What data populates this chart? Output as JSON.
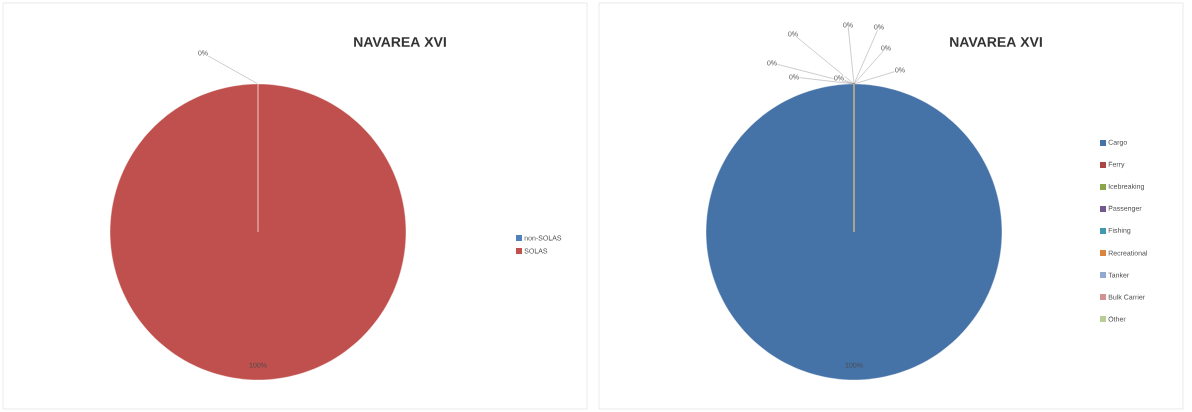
{
  "chart_data": [
    {
      "type": "pie",
      "title": "NAVAREA XVI",
      "categories": [
        "non-SOLAS",
        "SOLAS"
      ],
      "values": [
        0,
        100
      ],
      "colors": [
        "#4f81bd",
        "#c0504d"
      ],
      "value_labels": [
        "0%",
        "100%"
      ],
      "legend": "right"
    },
    {
      "type": "pie",
      "title": "NAVAREA XVI",
      "categories": [
        "Cargo",
        "Ferry",
        "Icebreaking",
        "Passenger",
        "Fishing",
        "Recreational",
        "Tanker",
        "Bulk Carrier",
        "Other"
      ],
      "values": [
        100,
        0,
        0,
        0,
        0,
        0,
        0,
        0,
        0
      ],
      "colors": [
        "#4572a7",
        "#aa4643",
        "#89a54e",
        "#71588f",
        "#4198af",
        "#db843d",
        "#93a9cf",
        "#d19392",
        "#b9cd96"
      ],
      "value_labels": [
        "100%",
        "0%",
        "0%",
        "0%",
        "0%",
        "0%",
        "0%",
        "0%",
        "0%"
      ],
      "legend": "right"
    }
  ]
}
